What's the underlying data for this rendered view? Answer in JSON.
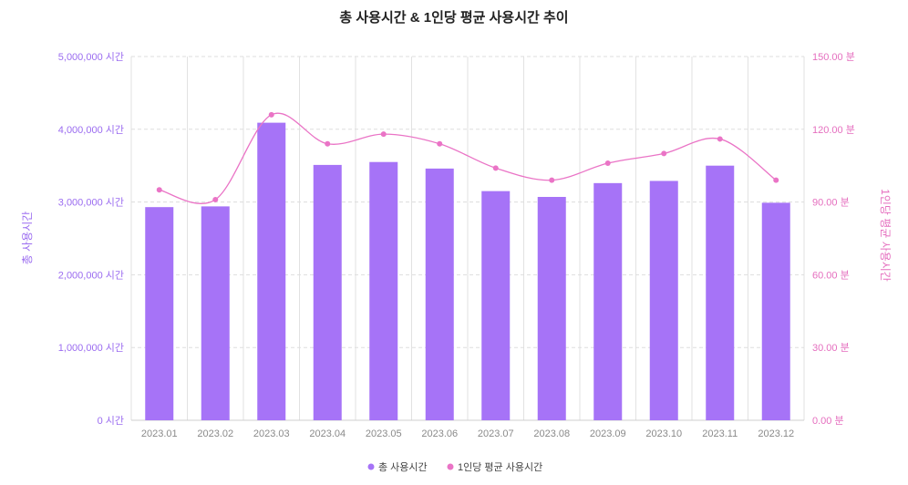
{
  "chart_data": {
    "type": "bar",
    "title": "총 사용시간 & 1인당 평균 사용시간 추이",
    "categories": [
      "2023.01",
      "2023.02",
      "2023.03",
      "2023.04",
      "2023.05",
      "2023.06",
      "2023.07",
      "2023.08",
      "2023.09",
      "2023.10",
      "2023.11",
      "2023.12"
    ],
    "series": [
      {
        "name": "총 사용시간",
        "type": "bar",
        "axis": "left",
        "color": "#a673f7",
        "values": [
          2930000,
          2940000,
          4090000,
          3510000,
          3550000,
          3460000,
          3150000,
          3070000,
          3260000,
          3290000,
          3500000,
          2990000
        ]
      },
      {
        "name": "1인당 평균 사용시간",
        "type": "line",
        "axis": "right",
        "color": "#ea74c6",
        "values": [
          95,
          91,
          126,
          114,
          118,
          114,
          104,
          99,
          106,
          110,
          116,
          99
        ]
      }
    ],
    "ylabel": "총 사용시간",
    "ylabel_right": "1인당 평균 사용시간",
    "ylim": [
      0,
      5000000
    ],
    "ylim_right": [
      0,
      150
    ],
    "yticks": [
      "0 시간",
      "1,000,000 시간",
      "2,000,000 시간",
      "3,000,000 시간",
      "4,000,000 시간",
      "5,000,000 시간"
    ],
    "yticks_right": [
      "0.00 분",
      "30.00 분",
      "60.00 분",
      "90.00 분",
      "120.00 분",
      "150.00 분"
    ],
    "grid": true,
    "legend_position": "bottom-center"
  }
}
